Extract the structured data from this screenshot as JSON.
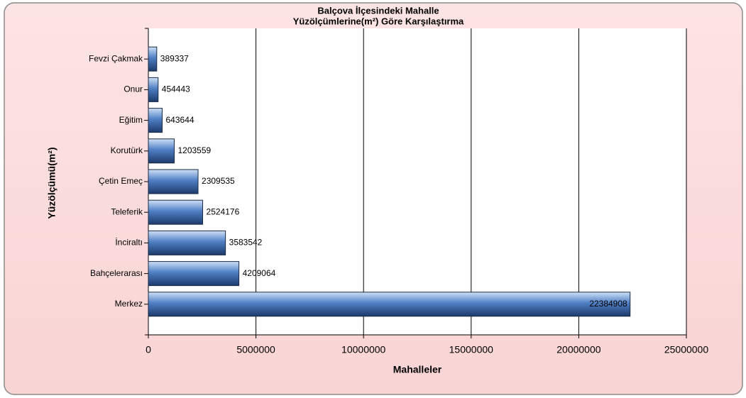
{
  "chart_data": {
    "type": "barh",
    "title": [
      "Balçova İlçesindeki Mahalle",
      "Yüzölçümlerine(m²) Göre Karşılaştırma"
    ],
    "x_label": "Mahalleler",
    "y_label": "Yüzölçümü(m²)",
    "categories": [
      "Fevzi Çakmak",
      "Onur",
      "Eğitim",
      "Korutürk",
      "Çetin Emeç",
      "Teleferik",
      "İnciraltı",
      "Bahçelerarası",
      "Merkez"
    ],
    "values": [
      389337,
      454443,
      643644,
      1203559,
      2309535,
      2524176,
      3583542,
      4209064,
      22384908
    ],
    "color": "#4f7fc4",
    "xlim": [
      0,
      25000000
    ],
    "xticks": [
      0,
      5000000,
      10000000,
      15000000,
      20000000,
      25000000
    ],
    "grid": true
  }
}
